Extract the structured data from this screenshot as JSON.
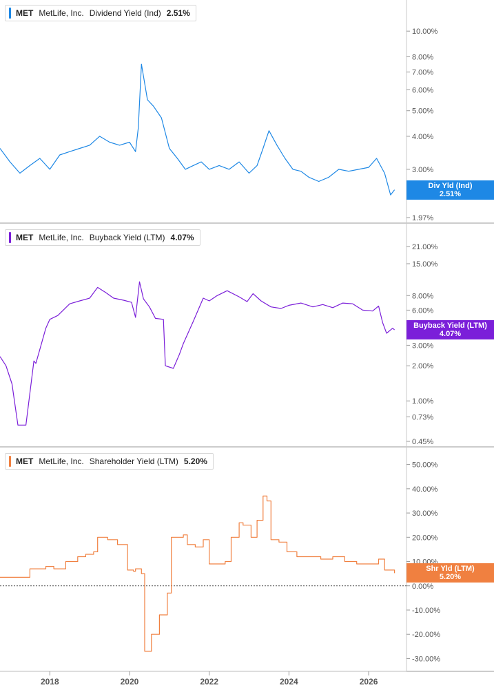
{
  "chart_data": [
    {
      "type": "line",
      "title": "",
      "legend": {
        "ticker": "MET",
        "company": "MetLife, Inc.",
        "metric": "Dividend Yield (Ind)",
        "value": "2.51%"
      },
      "color": "#1e88e5",
      "scale": "log",
      "ylim": [
        1.97,
        12.5
      ],
      "yticks": [
        "10.00%",
        "8.00%",
        "7.00%",
        "6.00%",
        "5.00%",
        "4.00%",
        "3.00%",
        "2.51%",
        "1.97%"
      ],
      "current_tag": {
        "label": "Div Yld (Ind)",
        "value": "2.51%"
      },
      "series": [
        {
          "x": [
            2016.75,
            2017.0,
            2017.25,
            2017.5,
            2017.75,
            2018.0,
            2018.25,
            2018.5,
            2018.75,
            2019.0,
            2019.25,
            2019.5,
            2019.75,
            2020.0,
            2020.15,
            2020.22,
            2020.3,
            2020.45,
            2020.6,
            2020.8,
            2021.0,
            2021.2,
            2021.4,
            2021.6,
            2021.8,
            2022.0,
            2022.25,
            2022.5,
            2022.75,
            2023.0,
            2023.2,
            2023.35,
            2023.5,
            2023.7,
            2023.9,
            2024.1,
            2024.3,
            2024.5,
            2024.75,
            2025.0,
            2025.25,
            2025.5,
            2025.75,
            2026.0,
            2026.2,
            2026.4,
            2026.55,
            2026.65
          ],
          "y": [
            3.6,
            3.2,
            2.9,
            3.1,
            3.3,
            3.0,
            3.4,
            3.5,
            3.6,
            3.7,
            4.0,
            3.8,
            3.7,
            3.8,
            3.5,
            4.3,
            7.5,
            5.5,
            5.2,
            4.7,
            3.6,
            3.3,
            3.0,
            3.1,
            3.2,
            3.0,
            3.1,
            3.0,
            3.2,
            2.9,
            3.1,
            3.6,
            4.2,
            3.7,
            3.3,
            3.0,
            2.95,
            2.8,
            2.7,
            2.8,
            3.0,
            2.95,
            3.0,
            3.05,
            3.3,
            2.9,
            2.4,
            2.51
          ]
        }
      ]
    },
    {
      "type": "line",
      "title": "",
      "legend": {
        "ticker": "MET",
        "company": "MetLife, Inc.",
        "metric": "Buyback Yield (LTM)",
        "value": "4.07%"
      },
      "color": "#7b1fd9",
      "scale": "log",
      "ylim": [
        0.45,
        30
      ],
      "yticks": [
        "21.00%",
        "15.00%",
        "8.00%",
        "6.00%",
        "4.07%",
        "3.00%",
        "2.00%",
        "1.00%",
        "0.73%",
        "0.45%"
      ],
      "current_tag": {
        "label": "Buyback Yield (LTM)",
        "value": "4.07%"
      },
      "series": [
        {
          "x": [
            2016.75,
            2016.9,
            2017.05,
            2017.2,
            2017.4,
            2017.6,
            2017.65,
            2017.9,
            2018.0,
            2018.2,
            2018.5,
            2018.75,
            2019.0,
            2019.2,
            2019.4,
            2019.6,
            2019.85,
            2020.05,
            2020.15,
            2020.25,
            2020.35,
            2020.5,
            2020.65,
            2020.85,
            2020.9,
            2021.1,
            2021.25,
            2021.35,
            2021.6,
            2021.85,
            2022.0,
            2022.2,
            2022.45,
            2022.75,
            2022.95,
            2023.1,
            2023.3,
            2023.55,
            2023.8,
            2024.0,
            2024.3,
            2024.6,
            2024.85,
            2025.1,
            2025.35,
            2025.6,
            2025.85,
            2026.1,
            2026.25,
            2026.35,
            2026.45,
            2026.6,
            2026.65
          ],
          "y": [
            2.4,
            2.0,
            1.4,
            0.62,
            0.62,
            2.2,
            2.1,
            4.2,
            5.0,
            5.4,
            6.8,
            7.2,
            7.6,
            9.4,
            8.5,
            7.6,
            7.3,
            7.0,
            5.2,
            10.5,
            7.5,
            6.4,
            5.1,
            5.0,
            2.0,
            1.9,
            2.5,
            3.1,
            4.8,
            7.6,
            7.2,
            8.0,
            8.8,
            7.8,
            7.1,
            8.3,
            7.2,
            6.4,
            6.2,
            6.6,
            6.9,
            6.4,
            6.7,
            6.3,
            6.9,
            6.8,
            6.0,
            5.9,
            6.5,
            4.7,
            3.8,
            4.2,
            4.07
          ]
        }
      ]
    },
    {
      "type": "line",
      "title": "",
      "legend": {
        "ticker": "MET",
        "company": "MetLife, Inc.",
        "metric": "Shareholder Yield (LTM)",
        "value": "5.20%"
      },
      "color": "#f08040",
      "scale": "linear",
      "ylim": [
        -33,
        55
      ],
      "yticks": [
        "50.00%",
        "40.00%",
        "30.00%",
        "20.00%",
        "10.00%",
        "5.20%",
        "0.00%",
        "-10.00%",
        "-20.00%",
        "-30.00%"
      ],
      "zero_line": true,
      "current_tag": {
        "label": "Shr Yld (LTM)",
        "value": "5.20%"
      },
      "series": [
        {
          "x": [
            2016.75,
            2017.2,
            2017.5,
            2017.9,
            2018.1,
            2018.4,
            2018.7,
            2018.9,
            2019.1,
            2019.2,
            2019.45,
            2019.7,
            2019.9,
            2019.95,
            2020.1,
            2020.15,
            2020.3,
            2020.38,
            2020.55,
            2020.75,
            2020.95,
            2021.05,
            2021.35,
            2021.45,
            2021.65,
            2021.85,
            2022.0,
            2022.15,
            2022.4,
            2022.55,
            2022.75,
            2022.85,
            2023.05,
            2023.2,
            2023.35,
            2023.45,
            2023.55,
            2023.75,
            2023.95,
            2024.2,
            2024.5,
            2024.8,
            2025.1,
            2025.4,
            2025.7,
            2026.05,
            2026.25,
            2026.4,
            2026.65
          ],
          "y": [
            3.5,
            3.5,
            7,
            8,
            7,
            10,
            12,
            13,
            14,
            20,
            19,
            17,
            17,
            6.5,
            6,
            7,
            5,
            -27,
            -20,
            -12,
            -3,
            20,
            21,
            17,
            16,
            19,
            9,
            9,
            10,
            20,
            26,
            25,
            20,
            27,
            37,
            35,
            19,
            18,
            14,
            12,
            12,
            11,
            12,
            10,
            9,
            9,
            11,
            6.5,
            5.2
          ]
        }
      ]
    }
  ],
  "x_axis": {
    "ticks": [
      "2018",
      "2020",
      "2022",
      "2024",
      "2026"
    ],
    "range": [
      2016.75,
      2026.95
    ]
  }
}
